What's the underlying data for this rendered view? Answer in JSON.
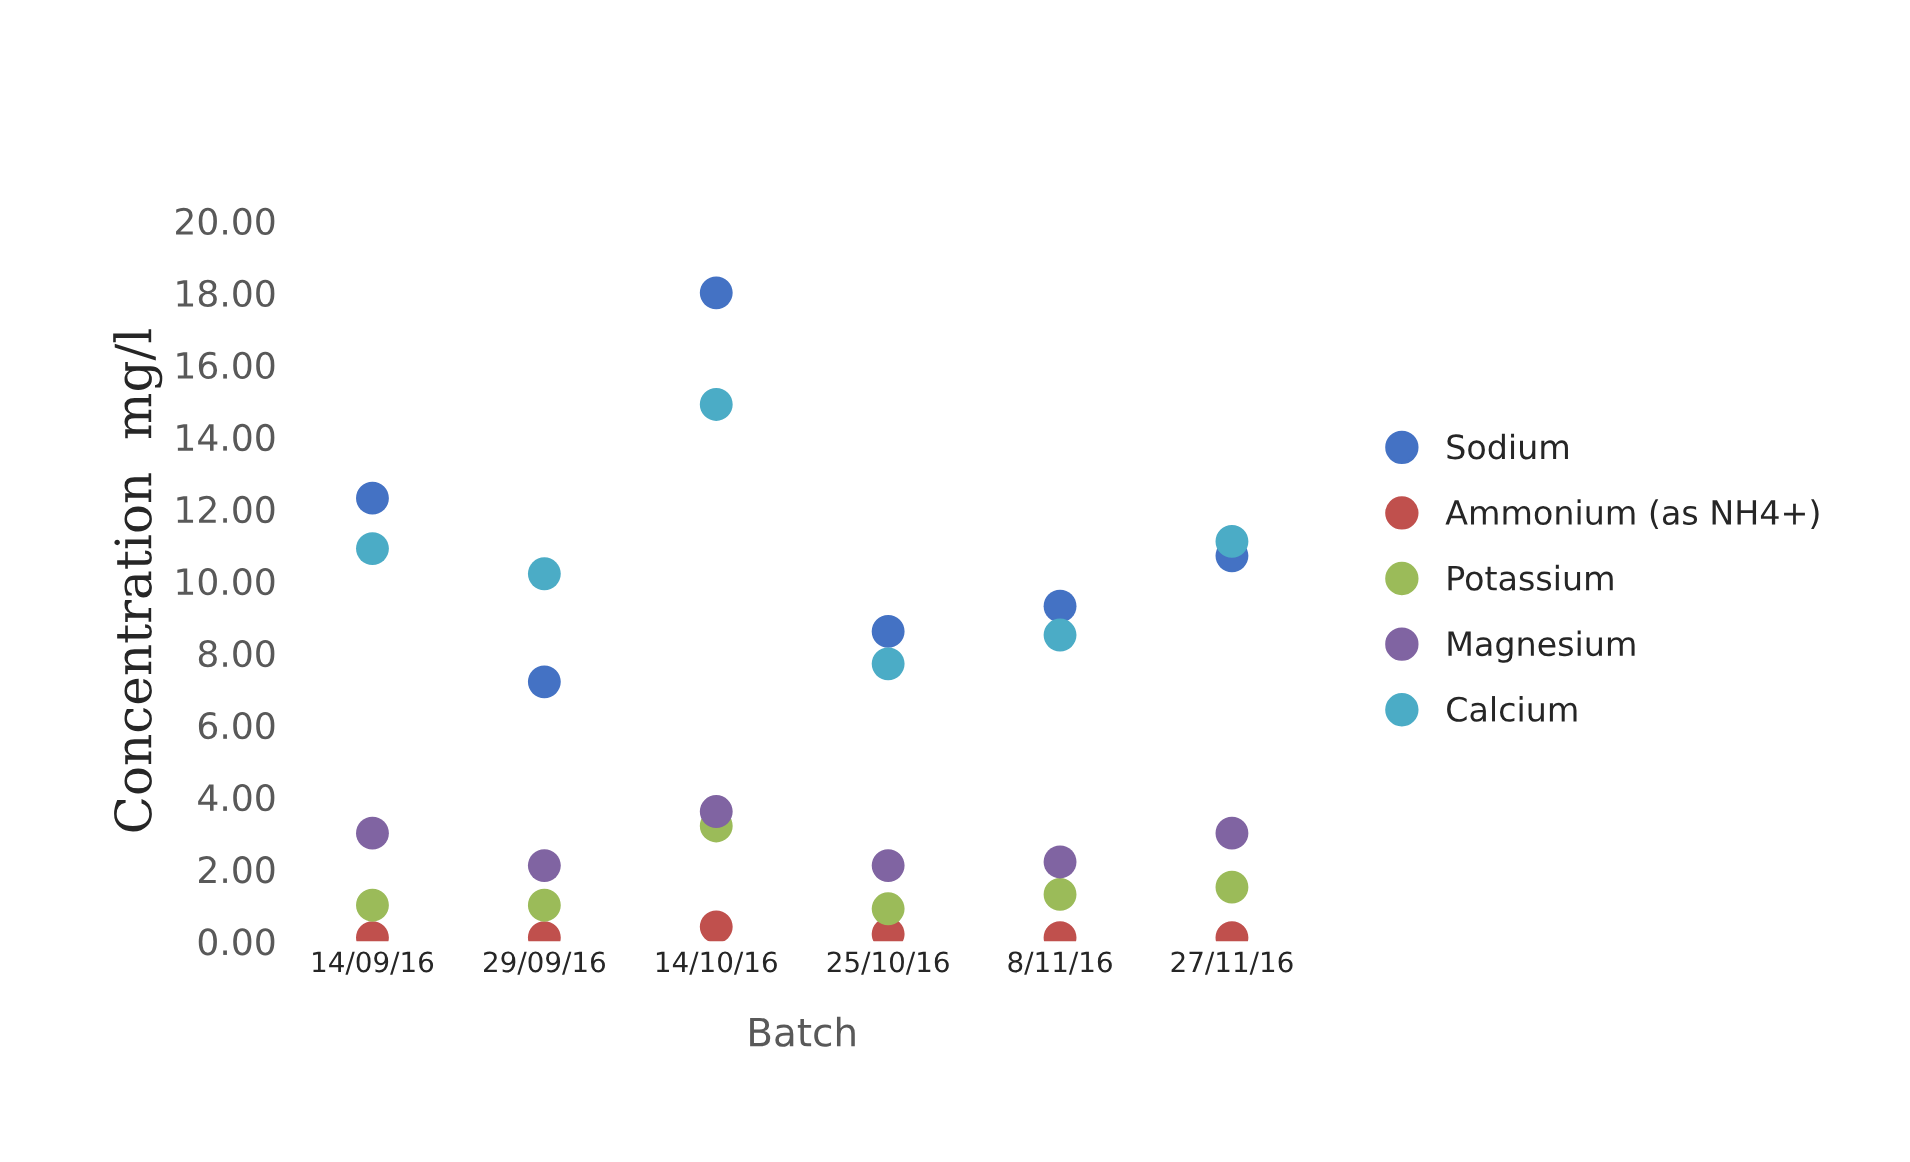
{
  "chart_data": {
    "type": "scatter",
    "xlabel": "Batch",
    "ylabel": "Concentration  mg/l",
    "categories": [
      "14/09/16",
      "29/09/16",
      "14/10/16",
      "25/10/16",
      "8/11/16",
      "27/11/16"
    ],
    "ylim": [
      0,
      20
    ],
    "yticks": [
      {
        "value": 0,
        "label": "0.00"
      },
      {
        "value": 2,
        "label": "2.00"
      },
      {
        "value": 4,
        "label": "4.00"
      },
      {
        "value": 6,
        "label": "6.00"
      },
      {
        "value": 8,
        "label": "8.00"
      },
      {
        "value": 10,
        "label": "10.00"
      },
      {
        "value": 12,
        "label": "12.00"
      },
      {
        "value": 14,
        "label": "14.00"
      },
      {
        "value": 16,
        "label": "16.00"
      },
      {
        "value": 18,
        "label": "18.00"
      },
      {
        "value": 20,
        "label": "20.00"
      }
    ],
    "grid": false,
    "legend": "right",
    "marker": "circle",
    "series": [
      {
        "name": "Sodium",
        "color": "#4472c4",
        "values": [
          12.3,
          7.2,
          18.0,
          8.6,
          9.3,
          10.7
        ]
      },
      {
        "name": "Ammonium (as NH4+)",
        "color": "#c0504d",
        "values": [
          0.1,
          0.1,
          0.4,
          0.2,
          0.1,
          0.1
        ]
      },
      {
        "name": "Potassium",
        "color": "#9bbb59",
        "values": [
          1.0,
          1.0,
          3.2,
          0.9,
          1.3,
          1.5
        ]
      },
      {
        "name": "Magnesium",
        "color": "#8064a2",
        "values": [
          3.0,
          2.1,
          3.6,
          2.1,
          2.2,
          3.0
        ]
      },
      {
        "name": "Calcium",
        "color": "#4bacc6",
        "values": [
          10.9,
          10.2,
          14.9,
          7.7,
          8.5,
          11.1
        ]
      }
    ]
  }
}
